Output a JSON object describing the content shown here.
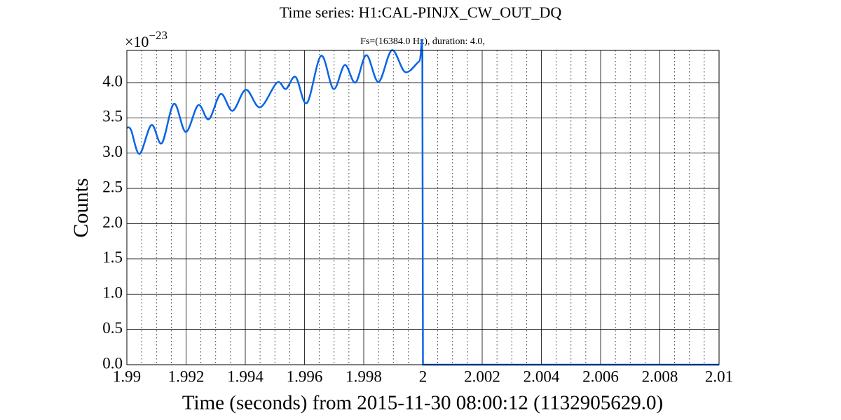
{
  "chart_data": {
    "type": "line",
    "title": "Time series: H1:CAL-PINJX_CW_OUT_DQ",
    "subtitle": "Fs=(16384.0 Hz), duration: 4.0,",
    "x_label": "Time (seconds) from 2015-11-30 08:00:12 (1132905629.0)",
    "y_label": "Counts",
    "y_multiplier": {
      "base": "×10",
      "exponent": "−23"
    },
    "xlim": [
      1.99,
      2.01
    ],
    "ylim": [
      0,
      4.457
    ],
    "xticks": [
      1.99,
      1.992,
      1.994,
      1.996,
      1.998,
      2,
      2.002,
      2.004,
      2.006,
      2.008,
      2.01
    ],
    "xminorticks": [
      1.9905,
      1.991,
      1.9915,
      1.9925,
      1.993,
      1.9935,
      1.9945,
      1.995,
      1.9955,
      1.9965,
      1.997,
      1.9975,
      1.9985,
      1.999,
      1.9995,
      2.0005,
      2.001,
      2.0015,
      2.0025,
      2.003,
      2.0035,
      2.0045,
      2.005,
      2.0055,
      2.0065,
      2.007,
      2.0075,
      2.0085,
      2.009,
      2.0095
    ],
    "yticks": [
      {
        "value": 0,
        "label": "0.0"
      },
      0.5,
      {
        "value": 1,
        "label": "1.0"
      },
      1.5,
      {
        "value": 2,
        "label": "2.0"
      },
      2.5,
      {
        "value": 3,
        "label": "3.0"
      },
      3.5,
      {
        "value": 4,
        "label": "4.0"
      }
    ],
    "grid": true,
    "series": [
      {
        "color": "#0a64e6",
        "x": [
          1.99,
          1.99014,
          1.99043,
          1.99083,
          1.99118,
          1.99159,
          1.99199,
          1.99241,
          1.99277,
          1.99317,
          1.99357,
          1.99402,
          1.9945,
          1.99507,
          1.99537,
          1.9957,
          1.99608,
          1.99656,
          1.99698,
          1.99736,
          1.99772,
          1.99809,
          1.9985,
          1.99895,
          1.9994,
          1.99987,
          1.99998,
          2.0,
          2.01
        ],
        "values": [
          3.36,
          3.33,
          2.99,
          3.4,
          3.14,
          3.7,
          3.3,
          3.68,
          3.48,
          3.84,
          3.6,
          3.9,
          3.65,
          4.0,
          3.91,
          4.08,
          3.71,
          4.38,
          3.91,
          4.25,
          4.0,
          4.39,
          4.01,
          4.46,
          4.15,
          4.3,
          4.28,
          0,
          0
        ]
      }
    ]
  }
}
